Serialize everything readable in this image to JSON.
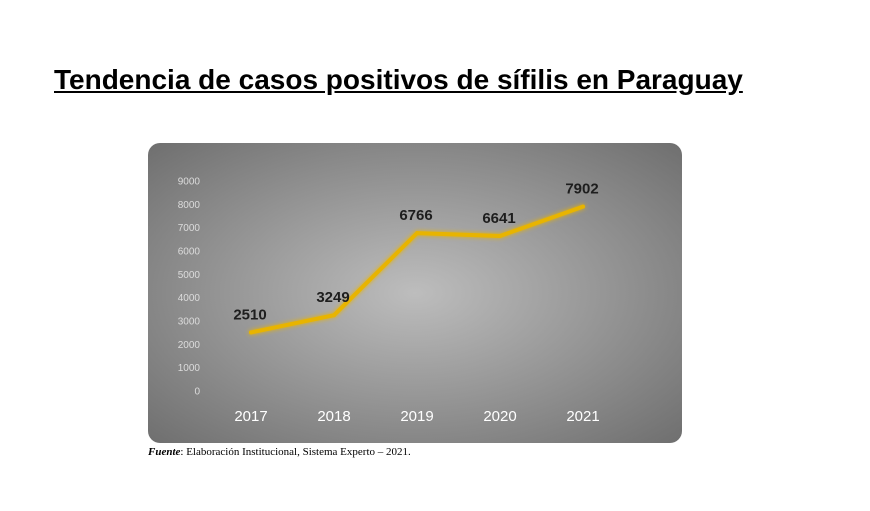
{
  "title": "Tendencia de casos positivos de sífilis en Paraguay",
  "source": {
    "label": "Fuente",
    "text": ": Elaboración Institucional, Sistema Experto – 2021."
  },
  "colors": {
    "line": "#e8b400",
    "background_center": "#bdbdbd",
    "background_edge": "#6a6a6a"
  },
  "chart_data": {
    "type": "line",
    "categories": [
      "2017",
      "2018",
      "2019",
      "2020",
      "2021"
    ],
    "series": [
      {
        "values": [
          2510,
          3249,
          6766,
          6641,
          7902
        ]
      }
    ],
    "data_labels": [
      "2510",
      "3249",
      "6766",
      "6641",
      "7902"
    ],
    "yticks": [
      0,
      1000,
      2000,
      3000,
      4000,
      5000,
      6000,
      7000,
      8000,
      9000
    ],
    "ylim": [
      0,
      9000
    ],
    "grid": false,
    "legend": "none",
    "title": "",
    "xlabel": "",
    "ylabel": ""
  }
}
